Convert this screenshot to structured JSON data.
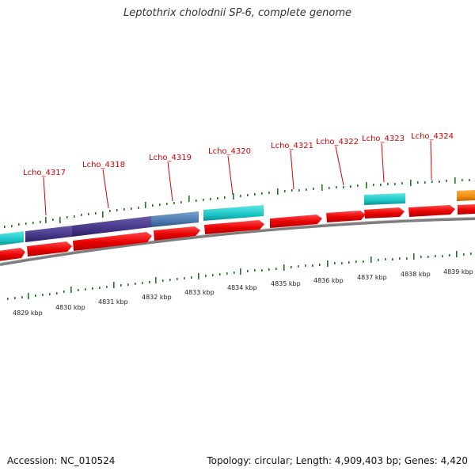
{
  "title": "Leptothrix cholodnii SP-6, complete genome",
  "footer": {
    "accession": "Accession: NC_010524",
    "summary": "Topology: circular; Length: 4,909,403 bp; Genes: 4,420"
  },
  "colors": {
    "forward_cds": "#ee1111",
    "gene_cyan": "#22cccc",
    "gene_purple": "#4b3b8c",
    "gene_steel": "#4f7fb5",
    "gene_orange": "#f08c10",
    "backbone": "#808080",
    "tick": "#1f7a1f",
    "label": "#d40000"
  },
  "gene_labels": [
    "Lcho_4317",
    "Lcho_4318",
    "Lcho_4319",
    "Lcho_4320",
    "Lcho_4321",
    "Lcho_4322",
    "Lcho_4323",
    "Lcho_4324"
  ],
  "kbp_labels": [
    "4829 kbp",
    "4830 kbp",
    "4831 kbp",
    "4832 kbp",
    "4833 kbp",
    "4834 kbp",
    "4835 kbp",
    "4836 kbp",
    "4837 kbp",
    "4838 kbp",
    "4839 kbp"
  ]
}
